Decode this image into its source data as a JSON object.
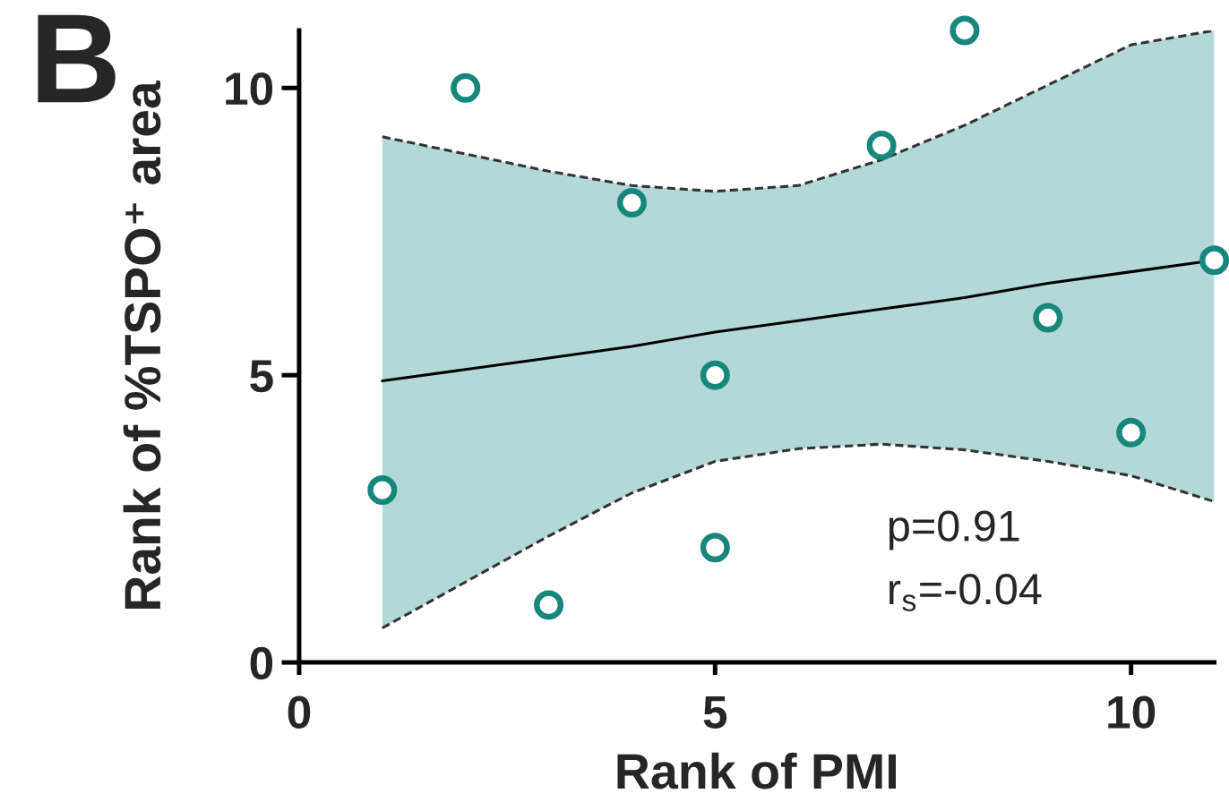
{
  "chart_data": {
    "type": "scatter",
    "xlabel": "Rank of PMI",
    "ylabel": "Rank of %TSPO⁺ area",
    "xlim": [
      0,
      11
    ],
    "ylim": [
      0,
      11
    ],
    "xticks": [
      0,
      5,
      10
    ],
    "yticks": [
      0,
      5,
      10
    ],
    "annotations": [
      "B",
      "p=0.91",
      "r$_{s}$=-0.04"
    ],
    "series": [
      {
        "color": "#17877b",
        "marker": "circle",
        "x": [
          1,
          2,
          3,
          4,
          5,
          5,
          7,
          8,
          9,
          10,
          11
        ],
        "values": [
          3,
          10,
          1,
          8,
          5,
          2,
          9,
          11,
          6,
          4,
          7
        ]
      },
      {
        "type": "line",
        "color": "#000000",
        "line_style": "solid",
        "x": [
          1,
          2,
          3,
          4,
          5,
          6,
          7,
          8,
          9,
          10,
          11
        ],
        "values": [
          4.9,
          5.1,
          5.3,
          5.5,
          5.75,
          5.95,
          6.15,
          6.35,
          6.6,
          6.8,
          7.0
        ],
        "lower": [
          0.6,
          1.4,
          2.2,
          2.95,
          3.5,
          3.72,
          3.8,
          3.7,
          3.5,
          3.25,
          2.8
        ],
        "upper": [
          9.15,
          8.85,
          8.55,
          8.3,
          8.2,
          8.3,
          8.75,
          9.35,
          10.05,
          10.75,
          11
        ]
      },
      {
        "type": "line",
        "color": "#333333",
        "line_style": "dashed",
        "x": [
          1,
          2,
          3,
          4,
          5,
          6,
          7,
          8,
          9,
          10,
          11
        ],
        "values": [
          9.15,
          8.85,
          8.55,
          8.3,
          8.2,
          8.3,
          8.75,
          9.35,
          10.05,
          10.75,
          11
        ]
      },
      {
        "type": "line",
        "color": "#333333",
        "line_style": "dashed",
        "x": [
          1,
          2,
          3,
          4,
          5,
          6,
          7,
          8,
          9,
          10,
          11
        ],
        "values": [
          0.6,
          1.4,
          2.2,
          2.95,
          3.5,
          3.72,
          3.8,
          3.7,
          3.5,
          3.25,
          2.8
        ]
      }
    ]
  }
}
